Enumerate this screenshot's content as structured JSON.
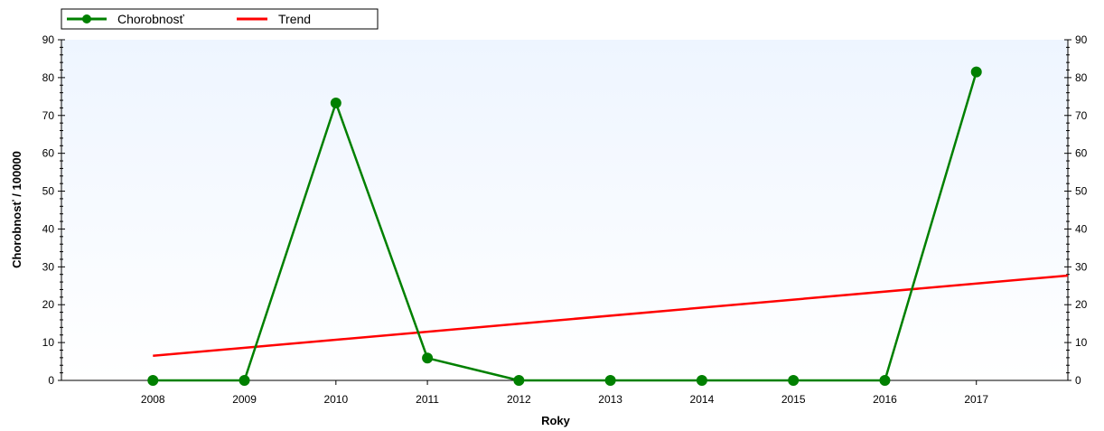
{
  "chart_data": {
    "type": "line",
    "xlabel": "Roky",
    "ylabel": "Chorobnosť / 100000",
    "xlim": [
      2007,
      2018
    ],
    "ylim": [
      0,
      90
    ],
    "y_ticks": [
      0,
      10,
      20,
      30,
      40,
      50,
      60,
      70,
      80,
      90
    ],
    "categories": [
      "2008",
      "2009",
      "2010",
      "2011",
      "2012",
      "2013",
      "2014",
      "2015",
      "2016",
      "2017"
    ],
    "grid": false,
    "legend_position": "top-left",
    "right_axis": true,
    "series": [
      {
        "name": "Chorobnosť",
        "color": "#008000",
        "marker": "circle",
        "x": [
          2008,
          2009,
          2010,
          2011,
          2012,
          2013,
          2014,
          2015,
          2016,
          2017
        ],
        "values": [
          0,
          0,
          73.3,
          5.9,
          0,
          0,
          0,
          0,
          0,
          81.5
        ]
      },
      {
        "name": "Trend",
        "color": "#ff0000",
        "marker": "none",
        "x": [
          2008,
          2018
        ],
        "values": [
          6.5,
          27.7
        ]
      }
    ],
    "background_gradient": [
      "#eef5ff",
      "#ffffff"
    ]
  }
}
